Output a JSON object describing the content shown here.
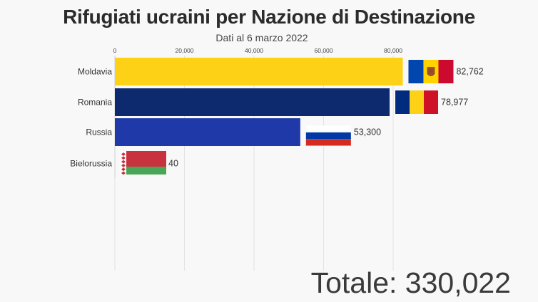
{
  "chart_data": {
    "type": "bar",
    "orientation": "horizontal",
    "title": "Rifugiati ucraini per Nazione di Destinazione",
    "subtitle": "Dati al 6 marzo 2022",
    "categories": [
      "Moldavia",
      "Romania",
      "Russia",
      "Bielorussia"
    ],
    "values": [
      82762,
      78977,
      53300,
      40
    ],
    "value_labels": [
      "82,762",
      "78,977",
      "53,300",
      "40"
    ],
    "x_ticks": [
      0,
      20000,
      40000,
      60000,
      80000
    ],
    "x_tick_labels": [
      "0",
      "20,000",
      "40,000",
      "60,000",
      "80,000"
    ],
    "xlim": [
      0,
      86000
    ],
    "bar_colors": [
      "#fcd116",
      "#0d2a6e",
      "#1f3aa8",
      "#e8e8e8"
    ],
    "flags": [
      "moldova-flag-icon",
      "romania-flag-icon",
      "russia-flag-icon",
      "belarus-flag-icon"
    ],
    "grid": true,
    "total_label": "Totale: 330,022"
  }
}
